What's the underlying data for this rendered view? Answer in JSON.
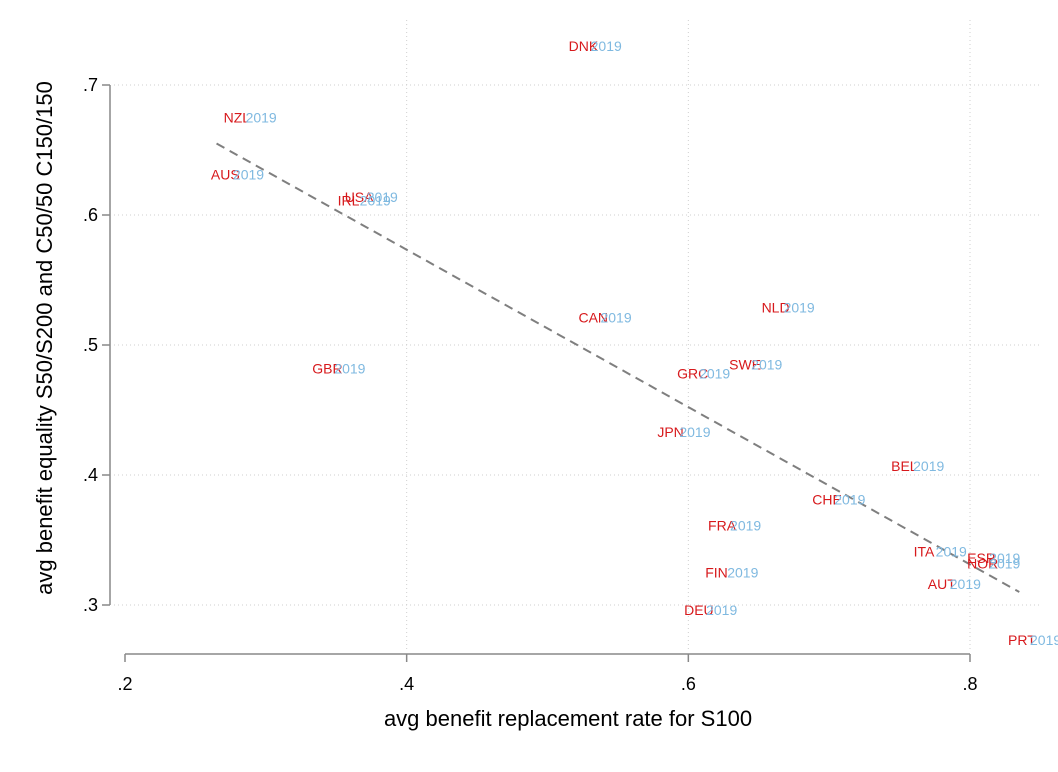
{
  "chart_data": {
    "type": "scatter",
    "xlabel": "avg benefit replacement rate for S100",
    "ylabel": "avg benefit equality S50/S200 and C50/50 C150/150",
    "xlim": [
      0.2,
      0.85
    ],
    "ylim": [
      0.28,
      0.74
    ],
    "xticks": [
      0.2,
      0.4,
      0.6,
      0.8
    ],
    "xtick_labels": [
      ".2",
      ".4",
      ".6",
      ".8"
    ],
    "yticks": [
      0.3,
      0.4,
      0.5,
      0.6,
      0.7
    ],
    "ytick_labels": [
      ".3",
      ".4",
      ".5",
      ".6",
      ".7"
    ],
    "grid": true,
    "marker_label_suffix": "2019",
    "colors": {
      "country": "#d7191c",
      "year": "#7fb9e0",
      "fit": "#7f7f7f"
    },
    "points": [
      {
        "label": "DNK",
        "x": 0.515,
        "y": 0.73
      },
      {
        "label": "NZL",
        "x": 0.27,
        "y": 0.675
      },
      {
        "label": "AUS",
        "x": 0.261,
        "y": 0.631
      },
      {
        "label": "USA",
        "x": 0.356,
        "y": 0.614
      },
      {
        "label": "IRL",
        "x": 0.351,
        "y": 0.611
      },
      {
        "label": "CAN",
        "x": 0.522,
        "y": 0.521
      },
      {
        "label": "NLD",
        "x": 0.652,
        "y": 0.529
      },
      {
        "label": "GBR",
        "x": 0.333,
        "y": 0.482
      },
      {
        "label": "SWE",
        "x": 0.629,
        "y": 0.485
      },
      {
        "label": "GRC",
        "x": 0.592,
        "y": 0.478
      },
      {
        "label": "JPN",
        "x": 0.578,
        "y": 0.433
      },
      {
        "label": "BEL",
        "x": 0.744,
        "y": 0.407
      },
      {
        "label": "CHE",
        "x": 0.688,
        "y": 0.381
      },
      {
        "label": "FRA",
        "x": 0.614,
        "y": 0.361
      },
      {
        "label": "ITA",
        "x": 0.76,
        "y": 0.341
      },
      {
        "label": "ESP",
        "x": 0.798,
        "y": 0.336
      },
      {
        "label": "NOR",
        "x": 0.798,
        "y": 0.332
      },
      {
        "label": "FIN",
        "x": 0.612,
        "y": 0.325
      },
      {
        "label": "AUT",
        "x": 0.77,
        "y": 0.316
      },
      {
        "label": "DEU",
        "x": 0.597,
        "y": 0.296
      },
      {
        "label": "PRT",
        "x": 0.827,
        "y": 0.273
      }
    ],
    "fit_line": {
      "x": [
        0.265,
        0.835
      ],
      "y": [
        0.655,
        0.31
      ],
      "style": "dashed"
    }
  }
}
